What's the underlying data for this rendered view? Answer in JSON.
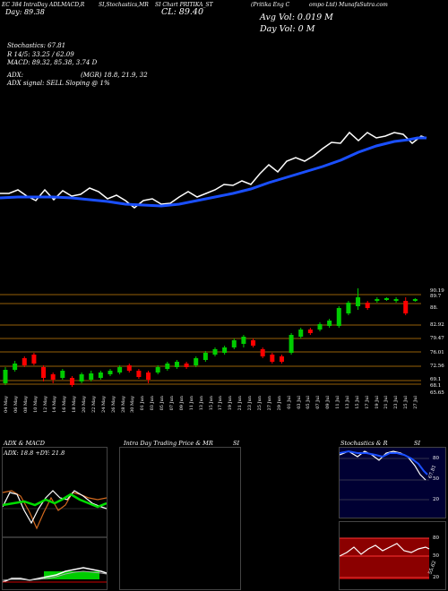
{
  "header": {
    "left1": "EC 384 IntraDay ADLMACD,R",
    "mid1": "SI,Stochastics,MR",
    "mid2": "SI Chart PRITIKA_ST",
    "right1": "(Pritika Eng C",
    "right2": "ompo Ltd) MunafaSutra.com",
    "day_line": "Day: 89.38",
    "cl": "CL: 89.40",
    "avg_vol": "Avg Vol: 0.019 M",
    "day_vol": "Day Vol: 0  M"
  },
  "indicators": {
    "stochastics": "Stochastics: 67.81",
    "r_line": "R  14/5: 33.25 / 62.09",
    "macd": "MACD: 89.32,  85.38, 3.74  D",
    "adx": "ADX: ",
    "adx_vals": "(MGR) 18.8,  21.9,  32",
    "adx_signal": "ADX  signal: SELL  Sloping @ 1%"
  },
  "price_levels": [
    "90.19",
    "89.7",
    "88.",
    "82.92",
    "79.47",
    "76.01",
    "72.56",
    "69.1",
    "68.1",
    "65.65"
  ],
  "dates": [
    "04 May",
    "06 May",
    "08 May",
    "10 May",
    "12 May",
    "14 May",
    "16 May",
    "18 May",
    "20 May",
    "22 May",
    "24 May",
    "26 May",
    "28 May",
    "30 May",
    "01 Jun",
    "03 Jun",
    "05 Jun",
    "07 Jun",
    "09 Jun",
    "11 Jun",
    "13 Jun",
    "15 Jun",
    "17 Jun",
    "19 Jun",
    "21 Jun",
    "23 Jun",
    "25 Jun",
    "27 Jun",
    "29 Jun",
    "01 Jul",
    "03 Jul",
    "05 Jul",
    "07 Jul",
    "09 Jul",
    "11 Jul",
    "13 Jul",
    "15 Jul",
    "17 Jul",
    "19 Jul",
    "21 Jul",
    "23 Jul",
    "25 Jul",
    "27 Jul"
  ],
  "bottom_panels": {
    "adx_title": "ADX  & MACD",
    "adx_vals": "ADX: 18.8  +DY: 21.8",
    "intraday_title": "Intra Day Trading Price  & MR",
    "intraday_si": "SI",
    "stoch_title": "Stochastics & R",
    "stoch_si": "SI",
    "stoch_levels": [
      "80",
      "50",
      "20"
    ],
    "rsi_levels": [
      "80",
      "50",
      "20"
    ],
    "stoch_val": "67.81",
    "rsi_val": "55.62"
  },
  "colors": {
    "up": "#00cc00",
    "down": "#ff0000",
    "ma": "#1a4fff",
    "grid": "#c8820a",
    "rsi_bg": "#8b0000",
    "stoch_bg": "#000033"
  }
}
